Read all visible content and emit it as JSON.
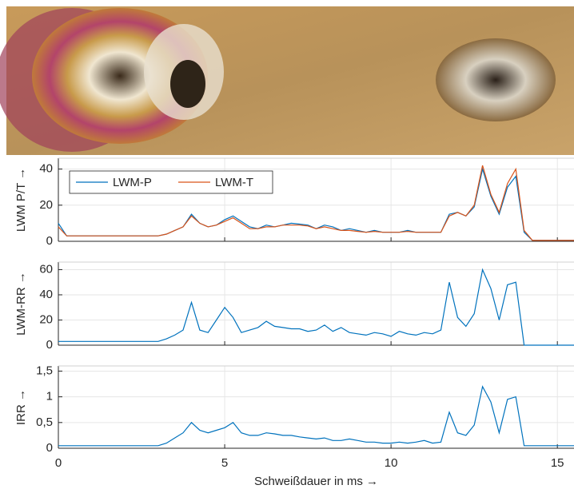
{
  "chart_data": [
    {
      "type": "line",
      "ylabel": "LWM P/T →",
      "x": [
        0,
        0.25,
        0.5,
        0.75,
        1,
        1.25,
        1.5,
        1.75,
        2,
        2.25,
        2.5,
        2.75,
        3,
        3.25,
        3.5,
        3.75,
        4,
        4.25,
        4.5,
        4.75,
        5,
        5.25,
        5.5,
        5.75,
        6,
        6.25,
        6.5,
        6.75,
        7,
        7.25,
        7.5,
        7.75,
        8,
        8.25,
        8.5,
        8.75,
        9,
        9.25,
        9.5,
        9.75,
        10,
        10.25,
        10.5,
        10.75,
        11,
        11.25,
        11.5,
        11.75,
        12,
        12.25,
        12.5,
        12.75,
        13,
        13.25,
        13.5,
        13.75,
        14,
        14.25,
        14.5,
        14.75,
        15,
        15.25,
        15.5
      ],
      "series": [
        {
          "name": "LWM-P",
          "color": "#0072bd",
          "values": [
            10,
            3,
            3,
            3,
            3,
            3,
            3,
            3,
            3,
            3,
            3,
            3,
            3,
            4,
            6,
            8,
            15,
            10,
            8,
            9,
            12,
            14,
            11,
            8,
            7,
            9,
            8,
            9,
            10,
            9.5,
            9,
            7,
            9,
            8,
            6,
            7,
            6,
            5,
            6,
            5,
            5,
            5,
            6,
            5,
            5,
            5,
            5,
            15,
            16,
            14,
            19,
            40,
            25,
            15,
            30,
            36,
            5,
            0.5,
            0.5,
            0.5,
            0.5,
            0.5,
            0.5
          ]
        },
        {
          "name": "LWM-T",
          "color": "#d95319",
          "values": [
            8,
            3,
            3,
            3,
            3,
            3,
            3,
            3,
            3,
            3,
            3,
            3,
            3,
            4,
            6,
            8,
            14,
            10,
            8,
            9,
            11,
            13,
            10,
            7,
            7,
            8,
            8,
            9,
            9,
            9,
            8.5,
            7,
            8,
            7,
            6,
            6,
            5.5,
            5,
            5.5,
            5,
            5,
            5,
            5.5,
            5,
            5,
            5,
            5,
            14,
            16,
            14,
            20,
            42,
            26,
            16,
            32,
            40,
            6,
            0.5,
            0.5,
            0.5,
            0.5,
            0.5,
            0.5
          ]
        }
      ],
      "xlim": [
        0,
        15.5
      ],
      "xticks": [
        0,
        5,
        10,
        15
      ],
      "show_xtick_labels": false,
      "ylim": [
        0,
        46
      ],
      "yticks": [
        0,
        20,
        40
      ],
      "grid": true,
      "legend": "upper left"
    },
    {
      "type": "line",
      "ylabel": "LWM-RR →",
      "x": [
        0,
        0.25,
        0.5,
        0.75,
        1,
        1.25,
        1.5,
        1.75,
        2,
        2.25,
        2.5,
        2.75,
        3,
        3.25,
        3.5,
        3.75,
        4,
        4.25,
        4.5,
        4.75,
        5,
        5.25,
        5.5,
        5.75,
        6,
        6.25,
        6.5,
        6.75,
        7,
        7.25,
        7.5,
        7.75,
        8,
        8.25,
        8.5,
        8.75,
        9,
        9.25,
        9.5,
        9.75,
        10,
        10.25,
        10.5,
        10.75,
        11,
        11.25,
        11.5,
        11.75,
        12,
        12.25,
        12.5,
        12.75,
        13,
        13.25,
        13.5,
        13.75,
        14,
        14.25,
        14.5,
        14.75,
        15,
        15.25,
        15.5
      ],
      "values": [
        3,
        3,
        3,
        3,
        3,
        3,
        3,
        3,
        3,
        3,
        3,
        3,
        3,
        5,
        8,
        12,
        34,
        12,
        10,
        20,
        30,
        22,
        10,
        12,
        14,
        19,
        15,
        14,
        13,
        13,
        11,
        12,
        16,
        11,
        14,
        10,
        9,
        8,
        10,
        9,
        7,
        11,
        9,
        8,
        10,
        9,
        12,
        50,
        22,
        15,
        25,
        60,
        45,
        20,
        48,
        50,
        0,
        0,
        0,
        0,
        0,
        0,
        0
      ],
      "color": "#0072bd",
      "xlim": [
        0,
        15.5
      ],
      "xticks": [
        0,
        5,
        10,
        15
      ],
      "show_xtick_labels": false,
      "ylim": [
        0,
        66
      ],
      "yticks": [
        0,
        20,
        40,
        60
      ],
      "grid": true
    },
    {
      "type": "line",
      "ylabel": "IRR →",
      "xlabel": "Schweißdauer in ms →",
      "x": [
        0,
        0.25,
        0.5,
        0.75,
        1,
        1.25,
        1.5,
        1.75,
        2,
        2.25,
        2.5,
        2.75,
        3,
        3.25,
        3.5,
        3.75,
        4,
        4.25,
        4.5,
        4.75,
        5,
        5.25,
        5.5,
        5.75,
        6,
        6.25,
        6.5,
        6.75,
        7,
        7.25,
        7.5,
        7.75,
        8,
        8.25,
        8.5,
        8.75,
        9,
        9.25,
        9.5,
        9.75,
        10,
        10.25,
        10.5,
        10.75,
        11,
        11.25,
        11.5,
        11.75,
        12,
        12.25,
        12.5,
        12.75,
        13,
        13.25,
        13.5,
        13.75,
        14,
        14.25,
        14.5,
        14.75,
        15,
        15.25,
        15.5
      ],
      "values": [
        0.05,
        0.05,
        0.05,
        0.05,
        0.05,
        0.05,
        0.05,
        0.05,
        0.05,
        0.05,
        0.05,
        0.05,
        0.05,
        0.1,
        0.2,
        0.3,
        0.5,
        0.35,
        0.3,
        0.35,
        0.4,
        0.5,
        0.3,
        0.25,
        0.25,
        0.3,
        0.28,
        0.25,
        0.25,
        0.22,
        0.2,
        0.18,
        0.2,
        0.15,
        0.15,
        0.18,
        0.15,
        0.12,
        0.12,
        0.1,
        0.1,
        0.12,
        0.1,
        0.12,
        0.15,
        0.1,
        0.12,
        0.7,
        0.3,
        0.25,
        0.45,
        1.2,
        0.9,
        0.3,
        0.95,
        1,
        0.05,
        0.05,
        0.05,
        0.05,
        0.05,
        0.05,
        0.05
      ],
      "color": "#0072bd",
      "xlim": [
        0,
        15.5
      ],
      "xticks": [
        0,
        5,
        10,
        15
      ],
      "show_xtick_labels": true,
      "ylim": [
        0,
        1.6
      ],
      "yticks": [
        0,
        {
          "value": 0.5,
          "label": "0,5"
        },
        1,
        {
          "value": 1.5,
          "label": "1,5"
        }
      ],
      "grid": true
    }
  ]
}
